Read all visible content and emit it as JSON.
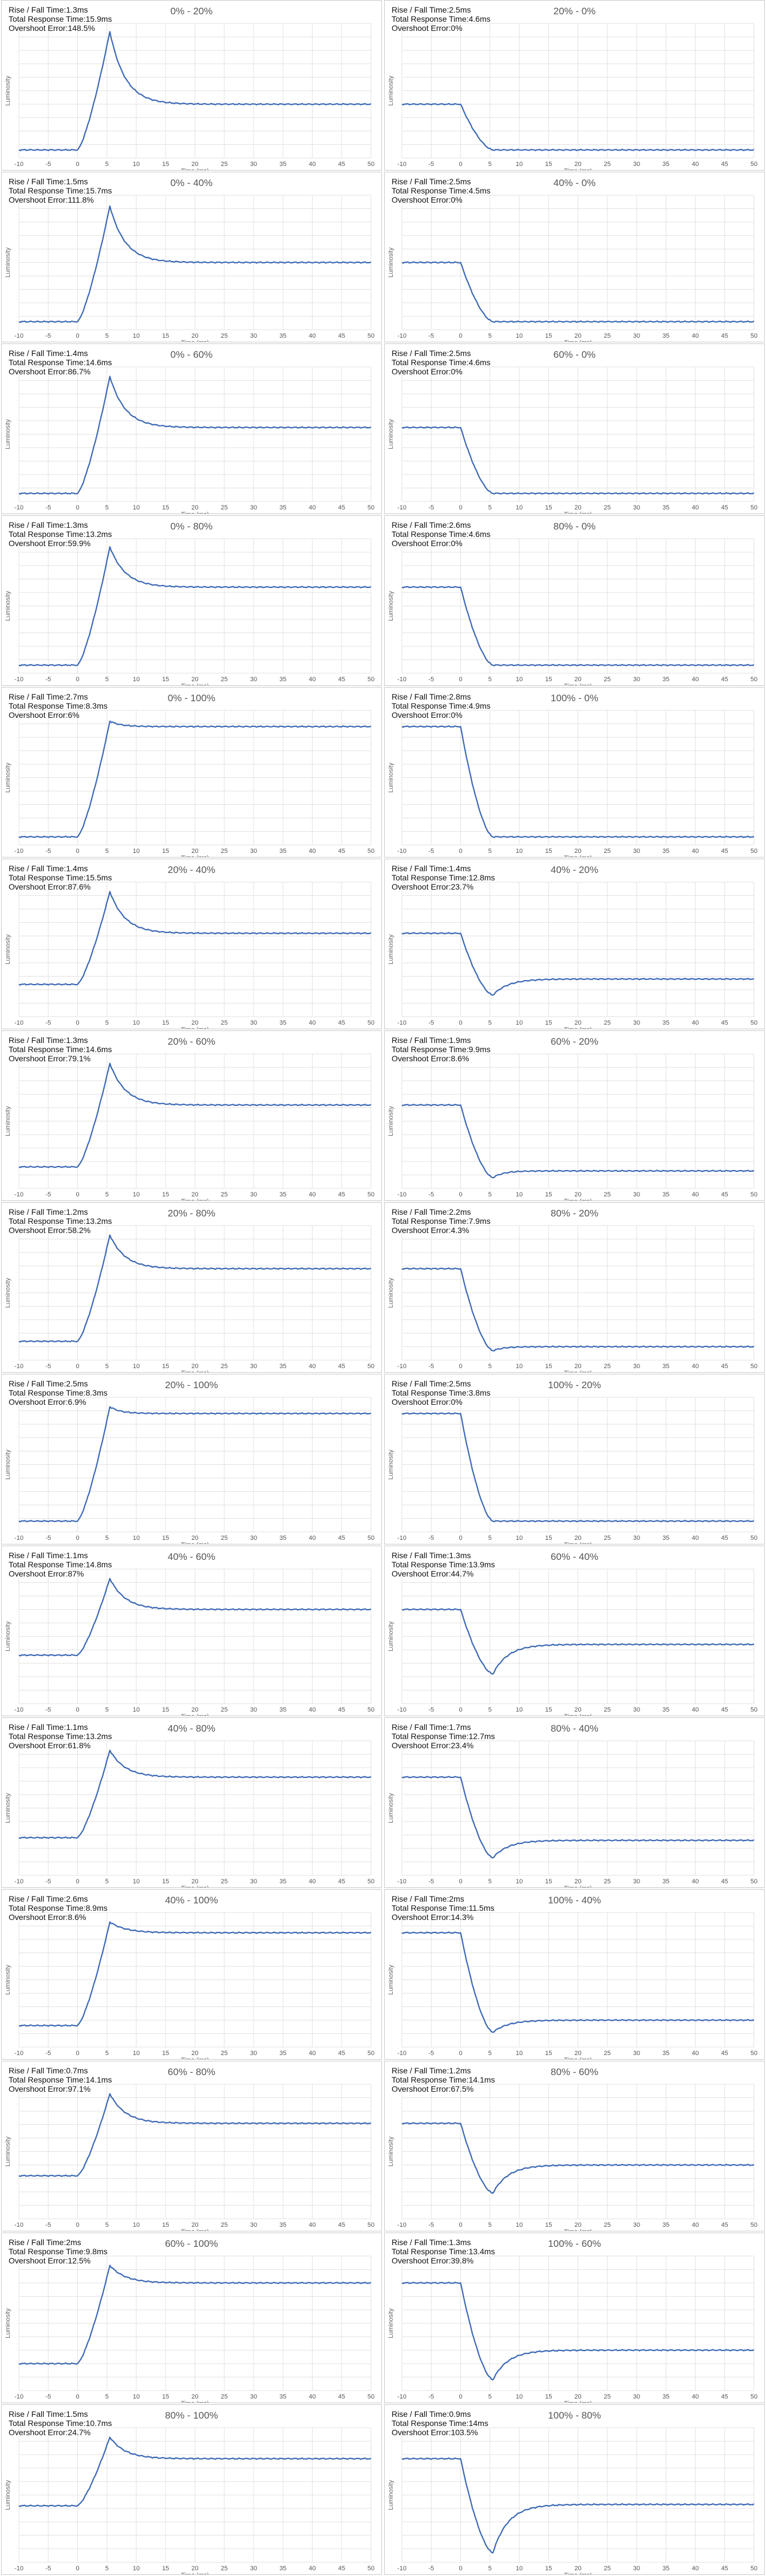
{
  "axis": {
    "xlabel": "Time (ms)",
    "ylabel": "Luminosity",
    "xlim": [
      -10,
      50
    ],
    "xticks": [
      -10,
      -5,
      0,
      5,
      10,
      15,
      20,
      25,
      30,
      35,
      40,
      45,
      50
    ]
  },
  "labels": {
    "rise_fall": "Rise / Fall Time:",
    "total": "Total Response Time:",
    "overshoot": "Overshoot Error:"
  },
  "colors": {
    "line": "#3a67b4",
    "grid": "#e2e2e2",
    "border": "#c9c9c9"
  },
  "chart_data": [
    {
      "type": "line",
      "title": "0% - 20%",
      "rise_fall": "1.3ms",
      "total": "15.9ms",
      "overshoot": "148.5%",
      "start": 0.06,
      "end": 0.4,
      "peak": 0.94
    },
    {
      "type": "line",
      "title": "20% - 0%",
      "rise_fall": "2.5ms",
      "total": "4.6ms",
      "overshoot": "0%",
      "start": 0.4,
      "end": 0.06,
      "peak": 0.06
    },
    {
      "type": "line",
      "title": "0% - 40%",
      "rise_fall": "1.5ms",
      "total": "15.7ms",
      "overshoot": "111.8%",
      "start": 0.06,
      "end": 0.5,
      "peak": 0.92
    },
    {
      "type": "line",
      "title": "40% - 0%",
      "rise_fall": "2.5ms",
      "total": "4.5ms",
      "overshoot": "0%",
      "start": 0.5,
      "end": 0.06,
      "peak": 0.06
    },
    {
      "type": "line",
      "title": "0% - 60%",
      "rise_fall": "1.4ms",
      "total": "14.6ms",
      "overshoot": "86.7%",
      "start": 0.06,
      "end": 0.55,
      "peak": 0.93
    },
    {
      "type": "line",
      "title": "60% - 0%",
      "rise_fall": "2.5ms",
      "total": "4.6ms",
      "overshoot": "0%",
      "start": 0.55,
      "end": 0.06,
      "peak": 0.06
    },
    {
      "type": "line",
      "title": "0% - 80%",
      "rise_fall": "1.3ms",
      "total": "13.2ms",
      "overshoot": "59.9%",
      "start": 0.06,
      "end": 0.64,
      "peak": 0.94
    },
    {
      "type": "line",
      "title": "80% - 0%",
      "rise_fall": "2.6ms",
      "total": "4.6ms",
      "overshoot": "0%",
      "start": 0.64,
      "end": 0.06,
      "peak": 0.06
    },
    {
      "type": "line",
      "title": "0% - 100%",
      "rise_fall": "2.7ms",
      "total": "8.3ms",
      "overshoot": "6%",
      "start": 0.06,
      "end": 0.88,
      "peak": 0.92
    },
    {
      "type": "line",
      "title": "100% - 0%",
      "rise_fall": "2.8ms",
      "total": "4.9ms",
      "overshoot": "0%",
      "start": 0.88,
      "end": 0.06,
      "peak": 0.06
    },
    {
      "type": "line",
      "title": "20% - 40%",
      "rise_fall": "1.4ms",
      "total": "15.5ms",
      "overshoot": "87.6%",
      "start": 0.24,
      "end": 0.62,
      "peak": 0.93
    },
    {
      "type": "line",
      "title": "40% - 20%",
      "rise_fall": "1.4ms",
      "total": "12.8ms",
      "overshoot": "23.7%",
      "start": 0.62,
      "end": 0.28,
      "peak": 0.16
    },
    {
      "type": "line",
      "title": "20% - 60%",
      "rise_fall": "1.3ms",
      "total": "14.6ms",
      "overshoot": "79.1%",
      "start": 0.16,
      "end": 0.62,
      "peak": 0.93
    },
    {
      "type": "line",
      "title": "60% - 20%",
      "rise_fall": "1.9ms",
      "total": "9.9ms",
      "overshoot": "8.6%",
      "start": 0.62,
      "end": 0.13,
      "peak": 0.08
    },
    {
      "type": "line",
      "title": "20% - 80%",
      "rise_fall": "1.2ms",
      "total": "13.2ms",
      "overshoot": "58.2%",
      "start": 0.14,
      "end": 0.68,
      "peak": 0.93
    },
    {
      "type": "line",
      "title": "80% - 20%",
      "rise_fall": "2.2ms",
      "total": "7.9ms",
      "overshoot": "4.3%",
      "start": 0.68,
      "end": 0.1,
      "peak": 0.07
    },
    {
      "type": "line",
      "title": "20% - 100%",
      "rise_fall": "2.5ms",
      "total": "8.3ms",
      "overshoot": "6.9%",
      "start": 0.08,
      "end": 0.88,
      "peak": 0.93
    },
    {
      "type": "line",
      "title": "100% - 20%",
      "rise_fall": "2.5ms",
      "total": "3.8ms",
      "overshoot": "0%",
      "start": 0.88,
      "end": 0.08,
      "peak": 0.08
    },
    {
      "type": "line",
      "title": "40% - 60%",
      "rise_fall": "1.1ms",
      "total": "14.8ms",
      "overshoot": "87%",
      "start": 0.36,
      "end": 0.7,
      "peak": 0.93
    },
    {
      "type": "line",
      "title": "60% - 40%",
      "rise_fall": "1.3ms",
      "total": "13.9ms",
      "overshoot": "44.7%",
      "start": 0.7,
      "end": 0.44,
      "peak": 0.22
    },
    {
      "type": "line",
      "title": "40% - 80%",
      "rise_fall": "1.1ms",
      "total": "13.2ms",
      "overshoot": "61.8%",
      "start": 0.28,
      "end": 0.73,
      "peak": 0.93
    },
    {
      "type": "line",
      "title": "80% - 40%",
      "rise_fall": "1.7ms",
      "total": "12.7ms",
      "overshoot": "23.4%",
      "start": 0.73,
      "end": 0.26,
      "peak": 0.13
    },
    {
      "type": "line",
      "title": "40% - 100%",
      "rise_fall": "2.6ms",
      "total": "8.9ms",
      "overshoot": "8.6%",
      "start": 0.16,
      "end": 0.85,
      "peak": 0.93
    },
    {
      "type": "line",
      "title": "100% - 40%",
      "rise_fall": "2ms",
      "total": "11.5ms",
      "overshoot": "14.3%",
      "start": 0.85,
      "end": 0.2,
      "peak": 0.11
    },
    {
      "type": "line",
      "title": "60% - 80%",
      "rise_fall": "0.7ms",
      "total": "14.1ms",
      "overshoot": "97.1%",
      "start": 0.32,
      "end": 0.71,
      "peak": 0.93
    },
    {
      "type": "line",
      "title": "80% - 60%",
      "rise_fall": "1.2ms",
      "total": "14.1ms",
      "overshoot": "67.5%",
      "start": 0.71,
      "end": 0.4,
      "peak": 0.19
    },
    {
      "type": "line",
      "title": "60% - 100%",
      "rise_fall": "2ms",
      "total": "9.8ms",
      "overshoot": "12.5%",
      "start": 0.2,
      "end": 0.8,
      "peak": 0.93
    },
    {
      "type": "line",
      "title": "100% - 60%",
      "rise_fall": "1.3ms",
      "total": "13.4ms",
      "overshoot": "39.8%",
      "start": 0.8,
      "end": 0.3,
      "peak": 0.08
    },
    {
      "type": "line",
      "title": "80% - 100%",
      "rise_fall": "1.5ms",
      "total": "10.7ms",
      "overshoot": "24.7%",
      "start": 0.42,
      "end": 0.77,
      "peak": 0.93
    },
    {
      "type": "line",
      "title": "100% - 80%",
      "rise_fall": "0.9ms",
      "total": "14ms",
      "overshoot": "103.5%",
      "start": 0.77,
      "end": 0.43,
      "peak": 0.07
    }
  ]
}
